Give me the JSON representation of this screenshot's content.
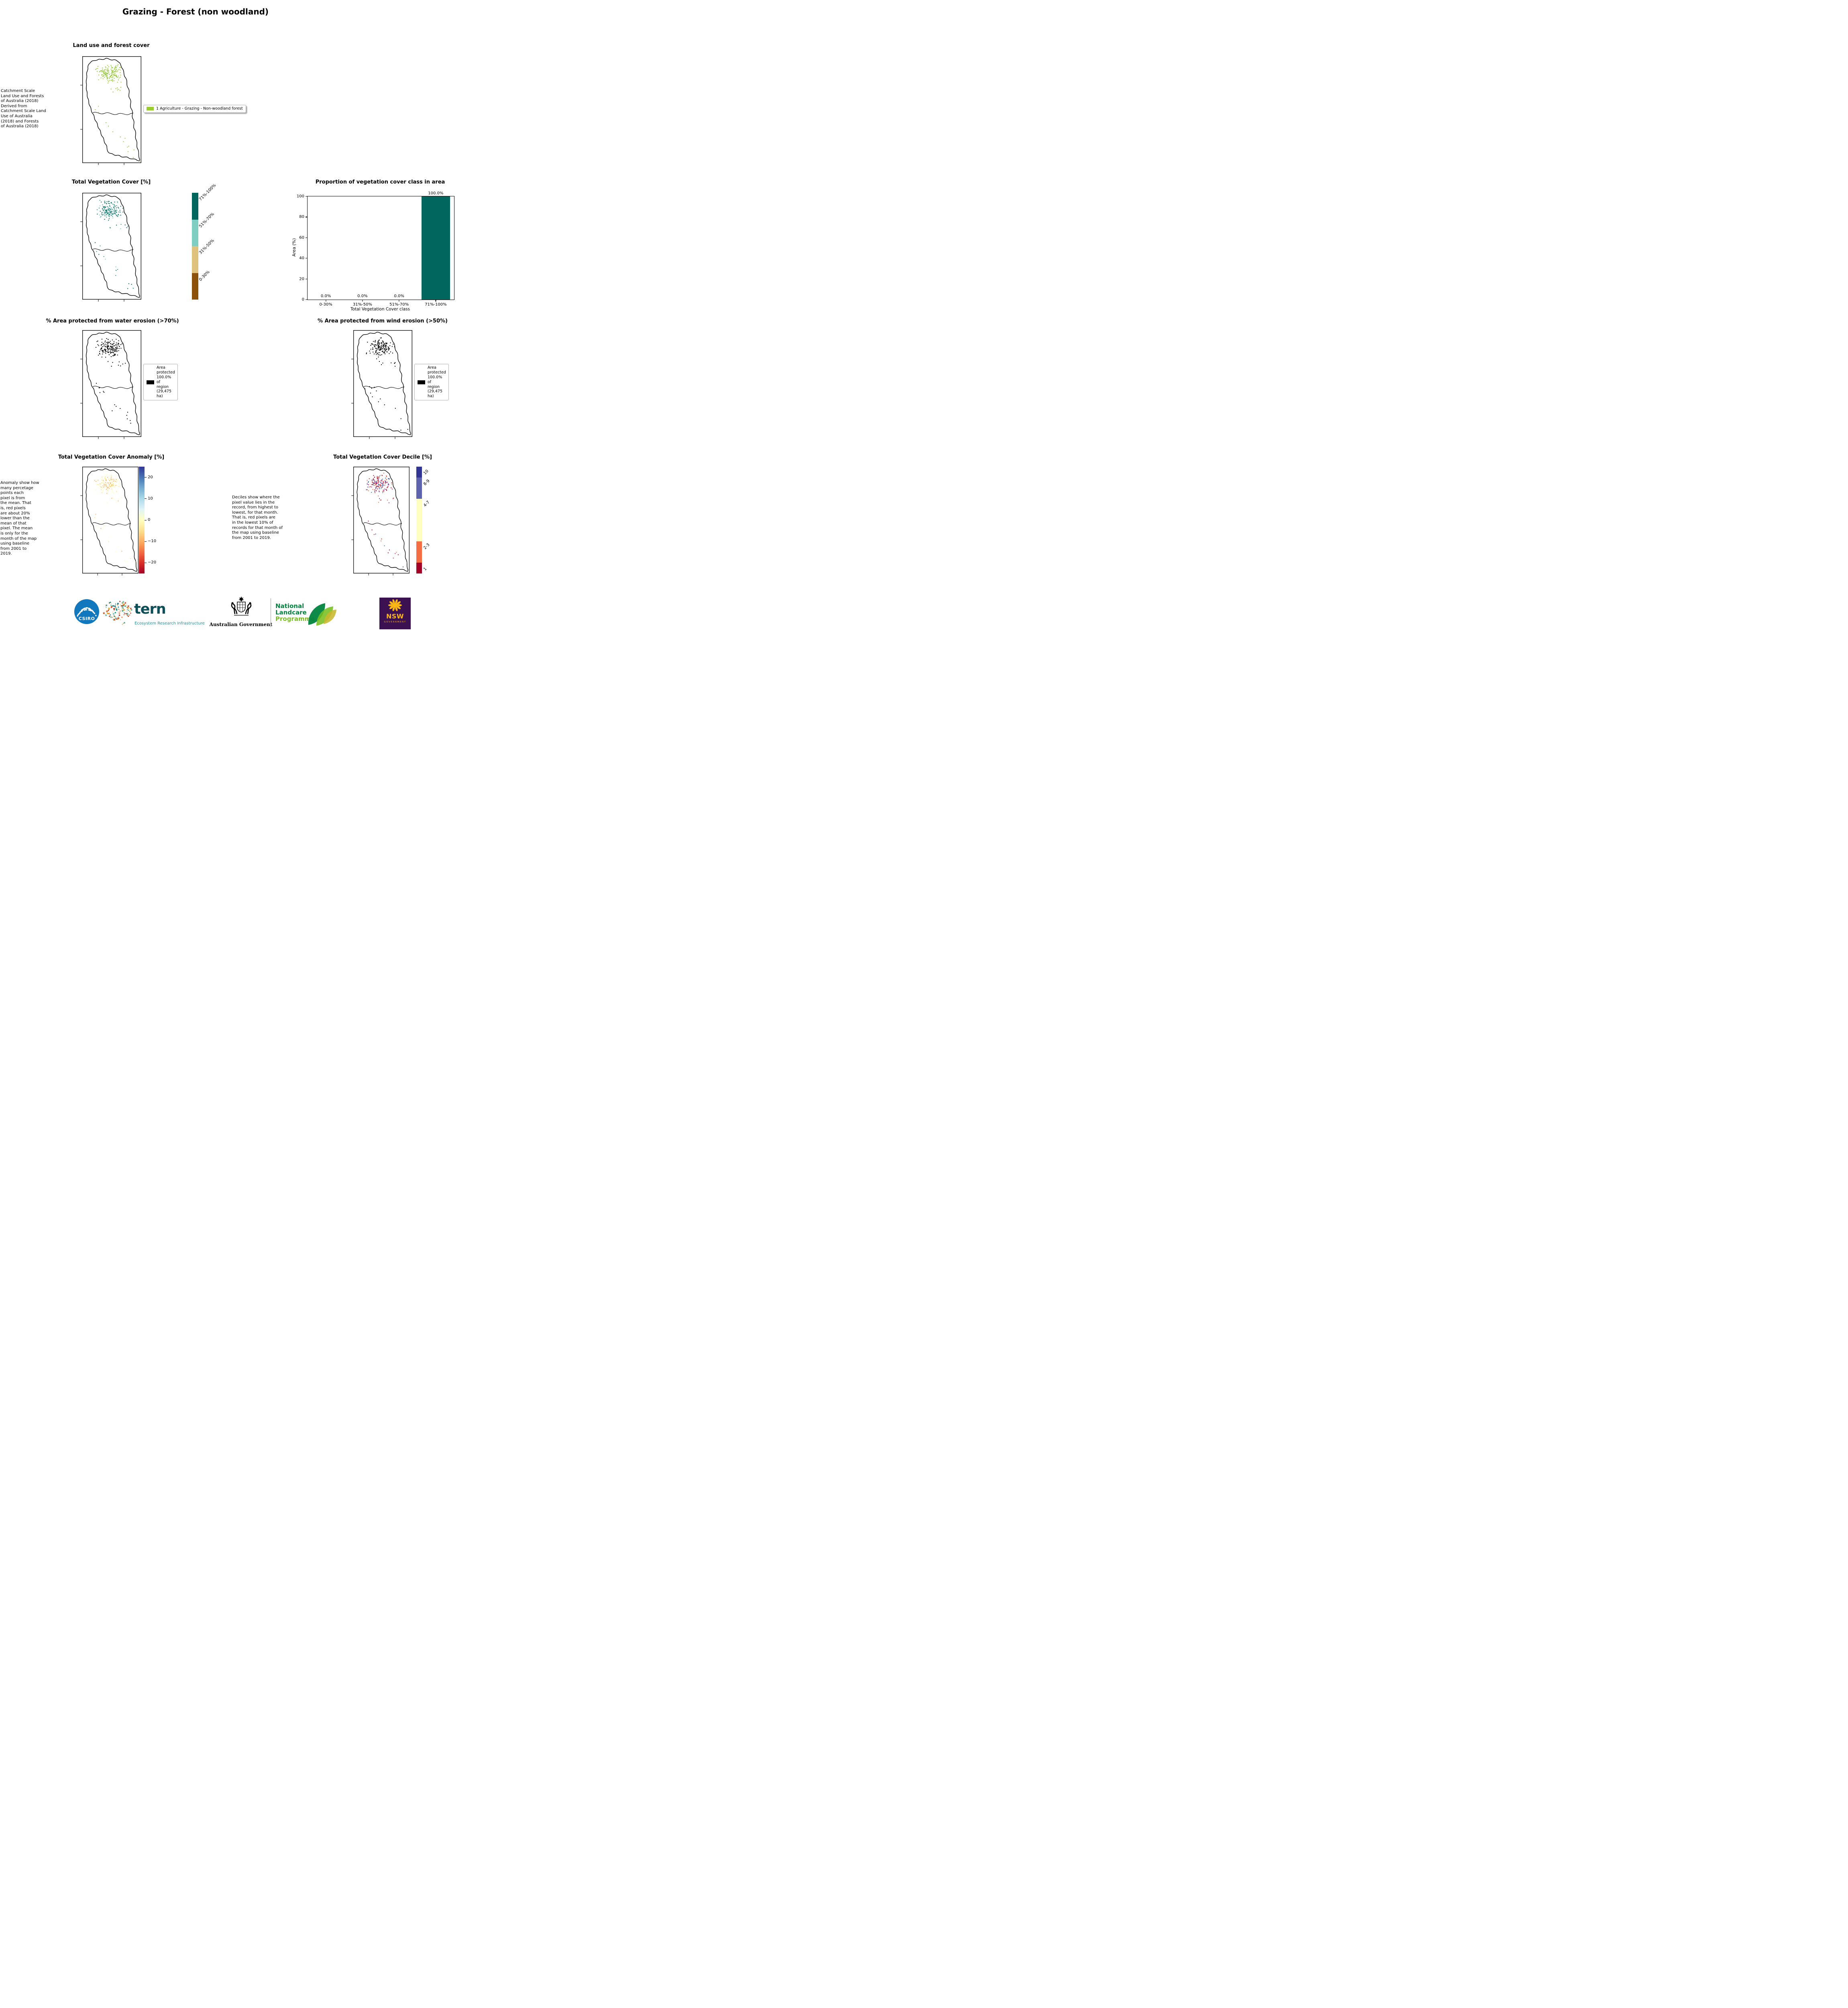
{
  "page": {
    "title": "Grazing - Forest (non woodland)"
  },
  "panels": {
    "landuse": {
      "title": "Land use and forest cover",
      "side_text": "Catchment Scale\nLand Use and Forests\nof Australia (2018)\nDerived from\nCatchment Scale Land\nUse of Australia\n(2018) and Forests\nof Australia (2018)",
      "legend": {
        "label": "1 Agriculture - Grazing - Non-woodland forest",
        "color": "#9ACD32"
      },
      "map": {
        "dot_colors": [
          "#9ACD32",
          "#9ACD32",
          "#8CC63F"
        ]
      }
    },
    "vegcover": {
      "title": "Total Vegetation Cover [%]",
      "colorbar": {
        "labels": [
          "71%-100%",
          "51%-70%",
          "31%-50%",
          "0-30%"
        ],
        "colors": [
          "#01665E",
          "#80CDC1",
          "#DFC27D",
          "#8C510A"
        ],
        "heights_pct": [
          25,
          25,
          25,
          25
        ]
      },
      "map": {
        "dot_colors": [
          "#01665E",
          "#01665E",
          "#35978F",
          "#80CDC1"
        ]
      }
    },
    "proportion": {
      "title": "Proportion of vegetation cover class in area"
    },
    "water": {
      "title": "% Area protected from water erosion (>70%)",
      "legend_text": "Area\nprotected\n100.0% of\nregion\n(29,475\nha)",
      "legend_color": "#000000",
      "map": {
        "dot_colors": [
          "#000000"
        ]
      }
    },
    "wind": {
      "title": "% Area protected from wind erosion (>50%)",
      "legend_text": "Area\nprotected\n100.0% of\nregion\n(29,475\nha)",
      "legend_color": "#000000",
      "map": {
        "dot_colors": [
          "#000000"
        ]
      }
    },
    "anomaly": {
      "title": "Total Vegetation Cover Anomaly [%]",
      "side_text": "Anomaly show how\nmany percetage\npoints each\npixel is from\nthe mean. That\nis, red pixels\nare about 20%\nlower than the\nmean of that\npixel. The mean\nis only for the\nmonth of the map\nusing baseline\nfrom 2001 to\n2019.",
      "colorbar": {
        "tick_labels": [
          "20",
          "10",
          "0",
          "−10",
          "−20"
        ],
        "tick_values": [
          20,
          10,
          0,
          -10,
          -20
        ],
        "range": [
          -25,
          25
        ],
        "gradient": [
          "#313695",
          "#4575B4",
          "#74ADD1",
          "#ABD9E9",
          "#E0F3F8",
          "#FFFFBF",
          "#FEE090",
          "#FDAE61",
          "#F46D43",
          "#D73027",
          "#A50026"
        ]
      },
      "map": {
        "dot_colors": [
          "#FFFFBF",
          "#FFFFBF",
          "#FEE090",
          "#FDAE61"
        ]
      }
    },
    "decile": {
      "title": "Total Vegetation Cover Decile [%]",
      "side_text": "Deciles show where the\npixel value lies in the\nrecord, from highest to\nlowest, for that month.\nThat is, red pixels are\nin the lowest 10% of\nrecords for that month of\nthe map using baseline\nfrom 2001 to 2019.",
      "colorbar": {
        "labels": [
          "10",
          "8-9",
          "4-7",
          "2-3",
          "1"
        ],
        "colors": [
          "#313695",
          "#5E63AD",
          "#FFFFBF",
          "#F46D43",
          "#A50026"
        ],
        "heights_pct": [
          10,
          20,
          40,
          20,
          10
        ]
      },
      "map": {
        "dot_colors": [
          "#D73027",
          "#D73027",
          "#A50026",
          "#F46D43",
          "#4575B4",
          "#313695",
          "#C51B7D"
        ]
      }
    }
  },
  "chart_data": {
    "type": "bar",
    "title": "Proportion of vegetation cover class in area",
    "categories": [
      "0-30%",
      "31%-50%",
      "51%-70%",
      "71%-100%"
    ],
    "values": [
      0.0,
      0.0,
      0.0,
      100.0
    ],
    "value_labels": [
      "0.0%",
      "0.0%",
      "0.0%",
      "100.0%"
    ],
    "xlabel": "Total Vegetation Cover class",
    "ylabel": "Area (%)",
    "ylim": [
      0,
      100
    ],
    "yticks": [
      0,
      20,
      40,
      60,
      80,
      100
    ],
    "bar_color": "#01665E",
    "grid": false,
    "legend_position": "none"
  },
  "footer": {
    "csiro": {
      "label": "CSIRO",
      "color": "#1278BE"
    },
    "tern": {
      "name": "tern",
      "subtitle": "Ecosystem Research Infrastructure",
      "color": "#0C4F58",
      "subtitle_color": "#2C8C94"
    },
    "aus_gov": {
      "label": "Australian Government"
    },
    "landcare": {
      "line1": "National",
      "line2": "Landcare",
      "line3": "Programme",
      "color_dark": "#00843D",
      "color_light": "#78BE20"
    },
    "nsw": {
      "label": "NSW",
      "sublabel": "GOVERNMENT",
      "bg": "#3B1152",
      "gold": "#FDB813"
    }
  }
}
